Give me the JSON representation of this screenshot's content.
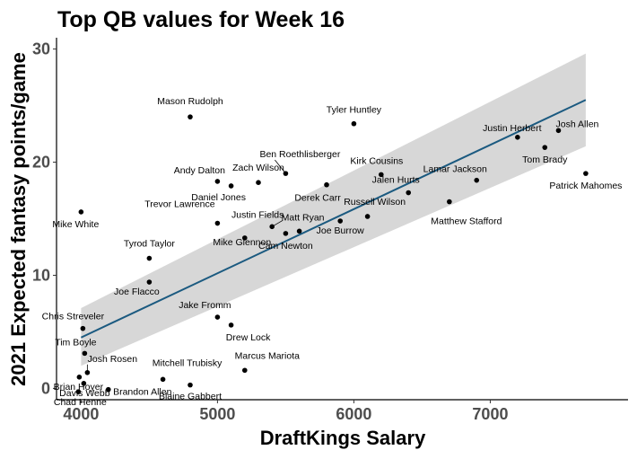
{
  "chart_data": {
    "type": "scatter",
    "title": "Top QB values for Week 16",
    "xlabel": "DraftKings Salary",
    "ylabel": "2021 Expected fantasy points/game",
    "xlim": [
      3820,
      8010
    ],
    "ylim": [
      -1,
      31
    ],
    "x_ticks": [
      4000,
      5000,
      6000,
      7000
    ],
    "y_ticks": [
      0,
      10,
      20,
      30
    ],
    "grid": false,
    "legend": "none",
    "trend": {
      "type": "linear fit with confidence band",
      "x_range": [
        4000,
        7700
      ],
      "y_start": 4.5,
      "y_end": 25.5,
      "band_lower_start": 2.0,
      "band_lower_end": 21.4,
      "band_upper_start": 7.1,
      "band_upper_end": 29.6,
      "line_color": "#1b5a80",
      "band_color": "#d3d3d3"
    },
    "points": [
      {
        "label": "Patrick Mahomes",
        "x": 7700,
        "y": 19.0
      },
      {
        "label": "Josh Allen",
        "x": 7500,
        "y": 22.8
      },
      {
        "label": "Tom Brady",
        "x": 7400,
        "y": 21.3
      },
      {
        "label": "Justin Herbert",
        "x": 7200,
        "y": 22.2
      },
      {
        "label": "Lamar Jackson",
        "x": 6900,
        "y": 18.4
      },
      {
        "label": "Matthew Stafford",
        "x": 6700,
        "y": 16.5
      },
      {
        "label": "Jalen Hurts",
        "x": 6400,
        "y": 17.3
      },
      {
        "label": "Kirk Cousins",
        "x": 6200,
        "y": 18.9
      },
      {
        "label": "Russell Wilson",
        "x": 6100,
        "y": 15.2
      },
      {
        "label": "Tyler Huntley",
        "x": 6000,
        "y": 23.4
      },
      {
        "label": "Joe Burrow",
        "x": 5900,
        "y": 14.8
      },
      {
        "label": "Derek Carr",
        "x": 5800,
        "y": 18.0
      },
      {
        "label": "Matt Ryan",
        "x": 5600,
        "y": 13.9
      },
      {
        "label": "Cam Newton",
        "x": 5500,
        "y": 13.7
      },
      {
        "label": "Ben Roethlisberger",
        "x": 5500,
        "y": 19.0
      },
      {
        "label": "Justin Fields",
        "x": 5400,
        "y": 14.3
      },
      {
        "label": "Zach Wilson",
        "x": 5300,
        "y": 18.2
      },
      {
        "label": "Mike Glennon",
        "x": 5200,
        "y": 13.3
      },
      {
        "label": "Daniel Jones",
        "x": 5100,
        "y": 17.9
      },
      {
        "label": "Andy Dalton",
        "x": 5000,
        "y": 18.3
      },
      {
        "label": "Trevor Lawrence",
        "x": 5000,
        "y": 14.6
      },
      {
        "label": "Mason Rudolph",
        "x": 4800,
        "y": 24.0
      },
      {
        "label": "Jake Fromm",
        "x": 5000,
        "y": 6.3
      },
      {
        "label": "Drew Lock",
        "x": 5100,
        "y": 5.6
      },
      {
        "label": "Marcus Mariota",
        "x": 5200,
        "y": 1.6
      },
      {
        "label": "Blaine Gabbert",
        "x": 4800,
        "y": 0.3
      },
      {
        "label": "Mitchell Trubisky",
        "x": 4600,
        "y": 0.8
      },
      {
        "label": "Tyrod Taylor",
        "x": 4500,
        "y": 11.5
      },
      {
        "label": "Joe Flacco",
        "x": 4500,
        "y": 9.4
      },
      {
        "label": "Brandon Allen",
        "x": 4200,
        "y": -0.1
      },
      {
        "label": "Mike White",
        "x": 4000,
        "y": 15.6
      },
      {
        "label": "Chris Streveler",
        "x": 4000,
        "y": 5.3
      },
      {
        "label": "Tim Boyle",
        "x": 4000,
        "y": 3.1
      },
      {
        "label": "Josh Rosen",
        "x": 4000,
        "y": 1.4
      },
      {
        "label": "Brian Hoyer",
        "x": 4000,
        "y": 1.0
      },
      {
        "label": "Davis Webb",
        "x": 4000,
        "y": 0.6
      },
      {
        "label": "Chad Henne",
        "x": 4000,
        "y": -0.3
      }
    ]
  }
}
